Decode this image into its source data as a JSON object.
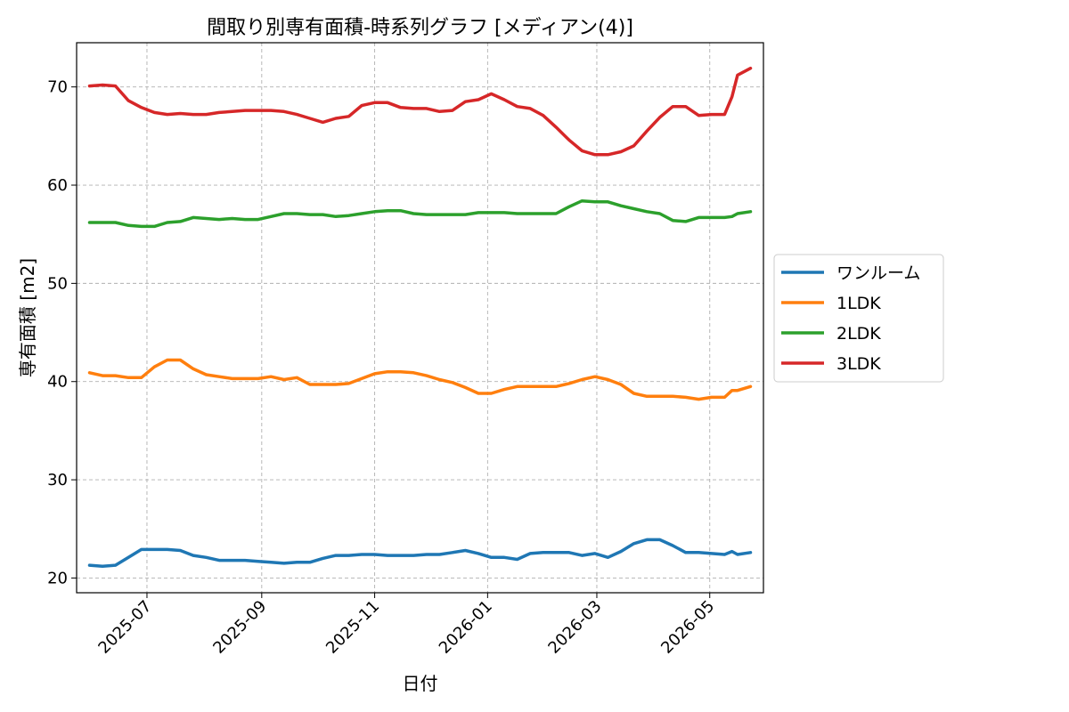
{
  "chart_data": {
    "type": "line",
    "title": "間取り別専有面積-時系列グラフ [メディアン(4)]",
    "xlabel": "日付",
    "ylabel": "専有面積 [m2]",
    "ylim": [
      18.5,
      74.5
    ],
    "xlim": [
      "2025-05-24",
      "2026-05-30"
    ],
    "grid": true,
    "legend_position": "right-outside",
    "x_ticks": [
      "2025-07",
      "2025-09",
      "2025-11",
      "2026-01",
      "2026-03",
      "2026-05"
    ],
    "y_ticks": [
      "20",
      "30",
      "40",
      "50",
      "60",
      "70"
    ],
    "x": [
      "2025-05-31",
      "2025-06-07",
      "2025-06-14",
      "2025-06-21",
      "2025-06-28",
      "2025-07-05",
      "2025-07-12",
      "2025-07-19",
      "2025-07-26",
      "2025-08-02",
      "2025-08-09",
      "2025-08-16",
      "2025-08-23",
      "2025-08-30",
      "2025-09-06",
      "2025-09-13",
      "2025-09-20",
      "2025-09-27",
      "2025-10-04",
      "2025-10-11",
      "2025-10-18",
      "2025-10-25",
      "2025-11-01",
      "2025-11-08",
      "2025-11-15",
      "2025-11-22",
      "2025-11-29",
      "2025-12-06",
      "2025-12-13",
      "2025-12-20",
      "2025-12-27",
      "2026-01-03",
      "2026-01-10",
      "2026-01-17",
      "2026-01-24",
      "2026-01-31",
      "2026-02-07",
      "2026-02-14",
      "2026-02-21",
      "2026-02-28",
      "2026-03-07",
      "2026-03-14",
      "2026-03-21",
      "2026-03-28",
      "2026-04-04",
      "2026-04-11",
      "2026-04-18",
      "2026-04-25",
      "2026-05-02",
      "2026-05-09",
      "2026-05-13",
      "2026-05-16",
      "2026-05-23"
    ],
    "series": [
      {
        "name": "ワンルーム",
        "color": "#1f77b4",
        "values": [
          21.3,
          21.2,
          21.3,
          22.1,
          22.9,
          22.9,
          22.9,
          22.8,
          22.3,
          22.1,
          21.8,
          21.8,
          21.8,
          21.7,
          21.6,
          21.5,
          21.6,
          21.6,
          22.0,
          22.3,
          22.3,
          22.4,
          22.4,
          22.3,
          22.3,
          22.3,
          22.4,
          22.4,
          22.6,
          22.8,
          22.5,
          22.1,
          22.1,
          21.9,
          22.5,
          22.6,
          22.6,
          22.6,
          22.3,
          22.5,
          22.1,
          22.7,
          23.5,
          23.9,
          23.9,
          23.3,
          22.6,
          22.6,
          22.5,
          22.4,
          22.7,
          22.4,
          22.6
        ]
      },
      {
        "name": "1LDK",
        "color": "#ff7f0e",
        "values": [
          40.9,
          40.6,
          40.6,
          40.4,
          40.4,
          41.5,
          42.2,
          42.2,
          41.3,
          40.7,
          40.5,
          40.3,
          40.3,
          40.3,
          40.5,
          40.2,
          40.4,
          39.7,
          39.7,
          39.7,
          39.8,
          40.3,
          40.8,
          41.0,
          41.0,
          40.9,
          40.6,
          40.2,
          39.9,
          39.4,
          38.8,
          38.8,
          39.2,
          39.5,
          39.5,
          39.5,
          39.5,
          39.8,
          40.2,
          40.5,
          40.2,
          39.7,
          38.8,
          38.5,
          38.5,
          38.5,
          38.4,
          38.2,
          38.4,
          38.4,
          39.1,
          39.1,
          39.5
        ]
      },
      {
        "name": "2LDK",
        "color": "#2ca02c",
        "values": [
          56.2,
          56.2,
          56.2,
          55.9,
          55.8,
          55.8,
          56.2,
          56.3,
          56.7,
          56.6,
          56.5,
          56.6,
          56.5,
          56.5,
          56.8,
          57.1,
          57.1,
          57.0,
          57.0,
          56.8,
          56.9,
          57.1,
          57.3,
          57.4,
          57.4,
          57.1,
          57.0,
          57.0,
          57.0,
          57.0,
          57.2,
          57.2,
          57.2,
          57.1,
          57.1,
          57.1,
          57.1,
          57.8,
          58.4,
          58.3,
          58.3,
          57.9,
          57.6,
          57.3,
          57.1,
          56.4,
          56.3,
          56.7,
          56.7,
          56.7,
          56.8,
          57.1,
          57.3
        ]
      },
      {
        "name": "3LDK",
        "color": "#d62728",
        "values": [
          70.1,
          70.2,
          70.1,
          68.6,
          67.9,
          67.4,
          67.2,
          67.3,
          67.2,
          67.2,
          67.4,
          67.5,
          67.6,
          67.6,
          67.6,
          67.5,
          67.2,
          66.8,
          66.4,
          66.8,
          67.0,
          68.1,
          68.4,
          68.4,
          67.9,
          67.8,
          67.8,
          67.5,
          67.6,
          68.5,
          68.7,
          69.3,
          68.7,
          68.0,
          67.8,
          67.1,
          65.9,
          64.6,
          63.5,
          63.1,
          63.1,
          63.4,
          64.0,
          65.5,
          66.9,
          68.0,
          68.0,
          67.1,
          67.2,
          67.2,
          69.0,
          71.2,
          71.9
        ]
      }
    ]
  }
}
